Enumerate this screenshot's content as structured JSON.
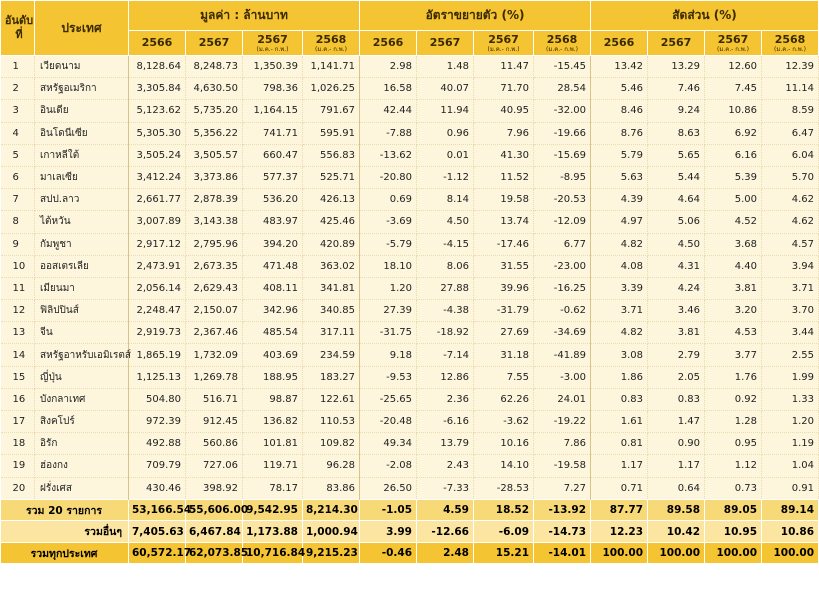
{
  "headers": {
    "rank": "อันดับที่",
    "country": "ประเทศ",
    "groups": {
      "value": "มูลค่า : ล้านบาท",
      "growth": "อัตราขยายตัว (%)",
      "share": "สัดส่วน (%)"
    },
    "year_a": "2566",
    "year_b": "2567",
    "year_c": "2567",
    "year_d": "2568",
    "period": "(ม.ค.- ก.พ.)"
  },
  "rows": [
    {
      "rank": "1",
      "country": "เวียดนาม",
      "v": [
        "8,128.64",
        "8,248.73",
        "1,350.39",
        "1,141.71"
      ],
      "g": [
        "2.98",
        "1.48",
        "11.47",
        "-15.45"
      ],
      "s": [
        "13.42",
        "13.29",
        "12.60",
        "12.39"
      ]
    },
    {
      "rank": "2",
      "country": "สหรัฐอเมริกา",
      "v": [
        "3,305.84",
        "4,630.50",
        "798.36",
        "1,026.25"
      ],
      "g": [
        "16.58",
        "40.07",
        "71.70",
        "28.54"
      ],
      "s": [
        "5.46",
        "7.46",
        "7.45",
        "11.14"
      ]
    },
    {
      "rank": "3",
      "country": "อินเดีย",
      "v": [
        "5,123.62",
        "5,735.20",
        "1,164.15",
        "791.67"
      ],
      "g": [
        "42.44",
        "11.94",
        "40.95",
        "-32.00"
      ],
      "s": [
        "8.46",
        "9.24",
        "10.86",
        "8.59"
      ]
    },
    {
      "rank": "4",
      "country": "อินโดนีเซีย",
      "v": [
        "5,305.30",
        "5,356.22",
        "741.71",
        "595.91"
      ],
      "g": [
        "-7.88",
        "0.96",
        "7.96",
        "-19.66"
      ],
      "s": [
        "8.76",
        "8.63",
        "6.92",
        "6.47"
      ]
    },
    {
      "rank": "5",
      "country": "เกาหลีใต้",
      "v": [
        "3,505.24",
        "3,505.57",
        "660.47",
        "556.83"
      ],
      "g": [
        "-13.62",
        "0.01",
        "41.30",
        "-15.69"
      ],
      "s": [
        "5.79",
        "5.65",
        "6.16",
        "6.04"
      ]
    },
    {
      "rank": "6",
      "country": "มาเลเซีย",
      "v": [
        "3,412.24",
        "3,373.86",
        "577.37",
        "525.71"
      ],
      "g": [
        "-20.80",
        "-1.12",
        "11.52",
        "-8.95"
      ],
      "s": [
        "5.63",
        "5.44",
        "5.39",
        "5.70"
      ]
    },
    {
      "rank": "7",
      "country": "สปป.ลาว",
      "v": [
        "2,661.77",
        "2,878.39",
        "536.20",
        "426.13"
      ],
      "g": [
        "0.69",
        "8.14",
        "19.58",
        "-20.53"
      ],
      "s": [
        "4.39",
        "4.64",
        "5.00",
        "4.62"
      ]
    },
    {
      "rank": "8",
      "country": "ไต้หวัน",
      "v": [
        "3,007.89",
        "3,143.38",
        "483.97",
        "425.46"
      ],
      "g": [
        "-3.69",
        "4.50",
        "13.74",
        "-12.09"
      ],
      "s": [
        "4.97",
        "5.06",
        "4.52",
        "4.62"
      ]
    },
    {
      "rank": "9",
      "country": "กัมพูชา",
      "v": [
        "2,917.12",
        "2,795.96",
        "394.20",
        "420.89"
      ],
      "g": [
        "-5.79",
        "-4.15",
        "-17.46",
        "6.77"
      ],
      "s": [
        "4.82",
        "4.50",
        "3.68",
        "4.57"
      ]
    },
    {
      "rank": "10",
      "country": "ออสเตรเลีย",
      "v": [
        "2,473.91",
        "2,673.35",
        "471.48",
        "363.02"
      ],
      "g": [
        "18.10",
        "8.06",
        "31.55",
        "-23.00"
      ],
      "s": [
        "4.08",
        "4.31",
        "4.40",
        "3.94"
      ]
    },
    {
      "rank": "11",
      "country": "เมียนมา",
      "v": [
        "2,056.14",
        "2,629.43",
        "408.11",
        "341.81"
      ],
      "g": [
        "1.20",
        "27.88",
        "39.96",
        "-16.25"
      ],
      "s": [
        "3.39",
        "4.24",
        "3.81",
        "3.71"
      ]
    },
    {
      "rank": "12",
      "country": "ฟิลิปปินส์",
      "v": [
        "2,248.47",
        "2,150.07",
        "342.96",
        "340.85"
      ],
      "g": [
        "27.39",
        "-4.38",
        "-31.79",
        "-0.62"
      ],
      "s": [
        "3.71",
        "3.46",
        "3.20",
        "3.70"
      ]
    },
    {
      "rank": "13",
      "country": "จีน",
      "v": [
        "2,919.73",
        "2,367.46",
        "485.54",
        "317.11"
      ],
      "g": [
        "-31.75",
        "-18.92",
        "27.69",
        "-34.69"
      ],
      "s": [
        "4.82",
        "3.81",
        "4.53",
        "3.44"
      ]
    },
    {
      "rank": "14",
      "country": "สหรัฐอาหรับเอมิเรตส์",
      "v": [
        "1,865.19",
        "1,732.09",
        "403.69",
        "234.59"
      ],
      "g": [
        "9.18",
        "-7.14",
        "31.18",
        "-41.89"
      ],
      "s": [
        "3.08",
        "2.79",
        "3.77",
        "2.55"
      ]
    },
    {
      "rank": "15",
      "country": "ญี่ปุ่น",
      "v": [
        "1,125.13",
        "1,269.78",
        "188.95",
        "183.27"
      ],
      "g": [
        "-9.53",
        "12.86",
        "7.55",
        "-3.00"
      ],
      "s": [
        "1.86",
        "2.05",
        "1.76",
        "1.99"
      ]
    },
    {
      "rank": "16",
      "country": "บังกลาเทศ",
      "v": [
        "504.80",
        "516.71",
        "98.87",
        "122.61"
      ],
      "g": [
        "-25.65",
        "2.36",
        "62.26",
        "24.01"
      ],
      "s": [
        "0.83",
        "0.83",
        "0.92",
        "1.33"
      ]
    },
    {
      "rank": "17",
      "country": "สิงคโปร์",
      "v": [
        "972.39",
        "912.45",
        "136.82",
        "110.53"
      ],
      "g": [
        "-20.48",
        "-6.16",
        "-3.62",
        "-19.22"
      ],
      "s": [
        "1.61",
        "1.47",
        "1.28",
        "1.20"
      ]
    },
    {
      "rank": "18",
      "country": "อิรัก",
      "v": [
        "492.88",
        "560.86",
        "101.81",
        "109.82"
      ],
      "g": [
        "49.34",
        "13.79",
        "10.16",
        "7.86"
      ],
      "s": [
        "0.81",
        "0.90",
        "0.95",
        "1.19"
      ]
    },
    {
      "rank": "19",
      "country": "ฮ่องกง",
      "v": [
        "709.79",
        "727.06",
        "119.71",
        "96.28"
      ],
      "g": [
        "-2.08",
        "2.43",
        "14.10",
        "-19.58"
      ],
      "s": [
        "1.17",
        "1.17",
        "1.12",
        "1.04"
      ]
    },
    {
      "rank": "20",
      "country": "ฝรั่งเศส",
      "v": [
        "430.46",
        "398.92",
        "78.17",
        "83.86"
      ],
      "g": [
        "26.50",
        "-7.33",
        "-28.53",
        "7.27"
      ],
      "s": [
        "0.71",
        "0.64",
        "0.73",
        "0.91"
      ]
    }
  ],
  "totals": [
    {
      "label": "รวม 20 รายการ",
      "v": [
        "53,166.54",
        "55,606.00",
        "9,542.95",
        "8,214.30"
      ],
      "g": [
        "-1.05",
        "4.59",
        "18.52",
        "-13.92"
      ],
      "s": [
        "87.77",
        "89.58",
        "89.05",
        "89.14"
      ]
    },
    {
      "label": "รวมอื่นๆ",
      "v": [
        "7,405.63",
        "6,467.84",
        "1,173.88",
        "1,000.94"
      ],
      "g": [
        "3.99",
        "-12.66",
        "-6.09",
        "-14.73"
      ],
      "s": [
        "12.23",
        "10.42",
        "10.95",
        "10.86"
      ]
    },
    {
      "label": "รวมทุกประเทศ",
      "v": [
        "60,572.17",
        "62,073.85",
        "10,716.84",
        "9,215.23"
      ],
      "g": [
        "-0.46",
        "2.48",
        "15.21",
        "-14.01"
      ],
      "s": [
        "100.00",
        "100.00",
        "100.00",
        "100.00"
      ]
    }
  ],
  "colors": {
    "header": "#f5c432",
    "row": "#fdf6dd",
    "total20": "#f8d978",
    "others": "#fbe5a0",
    "all": "#f5c432"
  }
}
